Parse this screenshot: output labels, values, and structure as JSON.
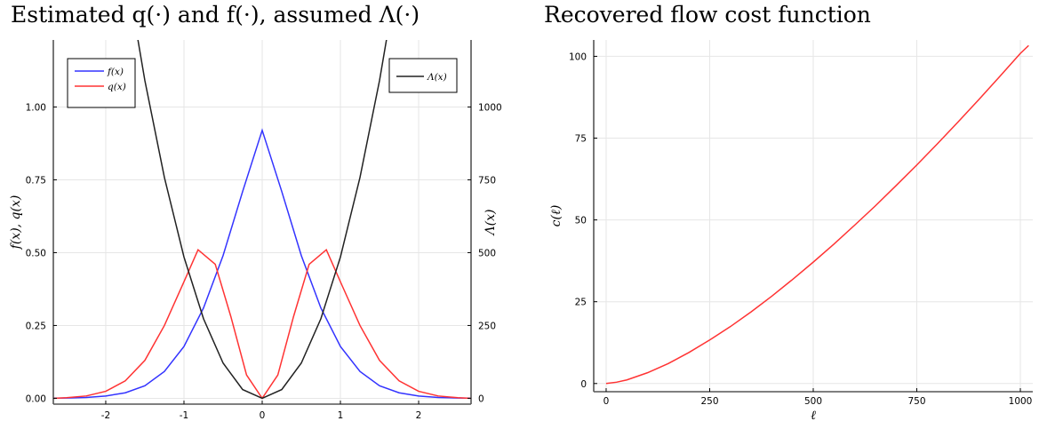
{
  "chart_data": [
    {
      "type": "line",
      "title": "Estimated q(·) and f(·), assumed Λ(·)",
      "xlabel": "",
      "ylabel": "f(x), q(x)",
      "y2label": "Λ(x)",
      "xlim": [
        -2.67,
        2.67
      ],
      "ylim": [
        -0.02,
        1.23
      ],
      "y2lim": [
        -20,
        1230
      ],
      "xticks": [
        -2,
        -1,
        0,
        1,
        2
      ],
      "yticks": [
        0.0,
        0.25,
        0.5,
        0.75,
        1.0
      ],
      "ytick_labels": [
        "0.00",
        "0.25",
        "0.50",
        "0.75",
        "1.00"
      ],
      "y2ticks": [
        0,
        250,
        500,
        750,
        1000
      ],
      "grid": true,
      "series": [
        {
          "name": "f(x)",
          "axis": "left",
          "color": "#3333ff",
          "x": [
            -2.67,
            -2.5,
            -2.25,
            -2.0,
            -1.75,
            -1.5,
            -1.25,
            -1.0,
            -0.75,
            -0.5,
            -0.25,
            0.0,
            0.25,
            0.5,
            0.75,
            1.0,
            1.25,
            1.5,
            1.75,
            2.0,
            2.25,
            2.5,
            2.67
          ],
          "y": [
            0.0004,
            0.001,
            0.003,
            0.008,
            0.019,
            0.043,
            0.092,
            0.178,
            0.31,
            0.49,
            0.71,
            0.92,
            0.71,
            0.49,
            0.31,
            0.178,
            0.092,
            0.043,
            0.019,
            0.008,
            0.003,
            0.001,
            0.0004
          ]
        },
        {
          "name": "q(x)",
          "axis": "left",
          "color": "#ff3333",
          "x": [
            -2.67,
            -2.5,
            -2.25,
            -2.0,
            -1.75,
            -1.5,
            -1.25,
            -1.0,
            -0.82,
            -0.6,
            -0.4,
            -0.2,
            0.0,
            0.2,
            0.4,
            0.6,
            0.82,
            1.0,
            1.25,
            1.5,
            1.75,
            2.0,
            2.25,
            2.5,
            2.67
          ],
          "y": [
            0.0,
            0.002,
            0.008,
            0.024,
            0.06,
            0.13,
            0.25,
            0.4,
            0.51,
            0.46,
            0.28,
            0.08,
            0.0,
            0.08,
            0.28,
            0.46,
            0.51,
            0.4,
            0.25,
            0.13,
            0.06,
            0.024,
            0.008,
            0.002,
            0.0
          ]
        },
        {
          "name": "Λ(x)",
          "axis": "right",
          "color": "#222222",
          "x": [
            -1.75,
            -1.5,
            -1.25,
            -1.0,
            -0.75,
            -0.5,
            -0.25,
            0.0,
            0.25,
            0.5,
            0.75,
            1.0,
            1.25,
            1.5,
            1.75
          ],
          "y": [
            1485,
            1091,
            758,
            485,
            273,
            121,
            30,
            0,
            30,
            121,
            273,
            485,
            758,
            1091,
            1485
          ]
        }
      ]
    },
    {
      "type": "line",
      "title": "Recovered flow cost function",
      "xlabel": "ℓ",
      "ylabel": "c(ℓ)",
      "xlim": [
        -30,
        1030
      ],
      "ylim": [
        -2.5,
        105
      ],
      "xticks": [
        0,
        250,
        500,
        750,
        1000
      ],
      "yticks": [
        0,
        25,
        50,
        75,
        100
      ],
      "grid": true,
      "series": [
        {
          "name": "",
          "color": "#ff3333",
          "x": [
            0,
            25,
            50,
            100,
            150,
            200,
            250,
            300,
            350,
            400,
            450,
            500,
            550,
            600,
            650,
            700,
            750,
            800,
            850,
            900,
            950,
            1000,
            1020
          ],
          "y": [
            0,
            0.4,
            1.1,
            3.3,
            6.1,
            9.5,
            13.3,
            17.4,
            21.9,
            26.7,
            31.8,
            37.1,
            42.6,
            48.4,
            54.3,
            60.5,
            66.8,
            73.3,
            80.0,
            86.8,
            93.8,
            100.9,
            103.3
          ]
        }
      ]
    }
  ]
}
